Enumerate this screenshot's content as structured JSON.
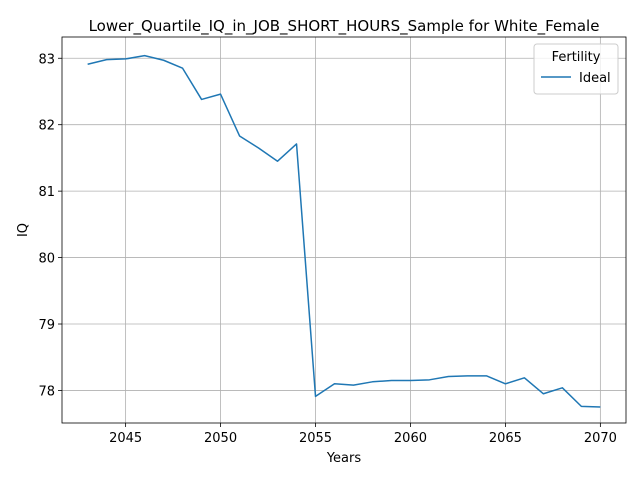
{
  "chart_data": {
    "type": "line",
    "title": "Lower_Quartile_IQ_in_JOB_SHORT_HOURS_Sample for White_Female",
    "xlabel": "Years",
    "ylabel": "IQ",
    "xlim": [
      2041.65,
      2071.35
    ],
    "ylim": [
      77.51,
      83.32
    ],
    "x_ticks": [
      2045,
      2050,
      2055,
      2060,
      2065,
      2070
    ],
    "y_ticks": [
      78,
      79,
      80,
      81,
      82,
      83
    ],
    "grid": true,
    "legend": {
      "title": "Fertility",
      "placement": "top-right"
    },
    "series": [
      {
        "name": "Ideal",
        "color": "#1f77b4",
        "x": [
          2043,
          2044,
          2045,
          2046,
          2047,
          2048,
          2049,
          2050,
          2051,
          2052,
          2053,
          2054,
          2055,
          2056,
          2057,
          2058,
          2059,
          2060,
          2061,
          2062,
          2063,
          2064,
          2065,
          2066,
          2067,
          2068,
          2069,
          2070
        ],
        "y": [
          82.91,
          82.98,
          82.99,
          83.04,
          82.97,
          82.85,
          82.38,
          82.46,
          81.83,
          81.65,
          81.45,
          81.71,
          77.91,
          78.1,
          78.08,
          78.13,
          78.15,
          78.15,
          78.16,
          78.21,
          78.22,
          78.22,
          78.1,
          78.19,
          77.95,
          78.04,
          77.76,
          77.75
        ]
      }
    ]
  }
}
